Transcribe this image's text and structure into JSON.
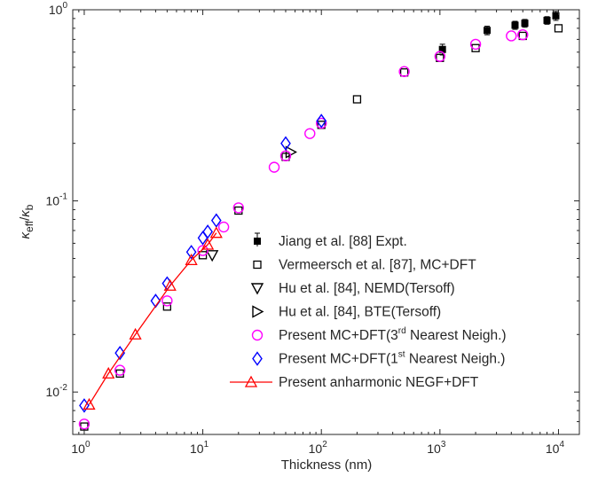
{
  "chart_data": {
    "type": "scatter",
    "title": "",
    "xlabel": "Thickness (nm)",
    "ylabel": {
      "base": "κ",
      "sub1": "eff",
      "slash": "/",
      "base2": "κ",
      "sub2": "b"
    },
    "xscale": "log",
    "yscale": "log",
    "xlim": [
      0.8,
      15000
    ],
    "ylim": [
      0.006,
      1.0
    ],
    "grid": false,
    "legend_position": "center-right",
    "x_ticks": [
      {
        "value": 1,
        "base": "10",
        "exp": "0"
      },
      {
        "value": 10,
        "base": "10",
        "exp": "1"
      },
      {
        "value": 100,
        "base": "10",
        "exp": "2"
      },
      {
        "value": 1000,
        "base": "10",
        "exp": "3"
      },
      {
        "value": 10000,
        "base": "10",
        "exp": "4"
      }
    ],
    "y_ticks": [
      {
        "value": 0.01,
        "base": "10",
        "exp": "-2"
      },
      {
        "value": 0.1,
        "base": "10",
        "exp": "-1"
      },
      {
        "value": 1,
        "base": "10",
        "exp": "0"
      }
    ],
    "series": [
      {
        "name": "Jiang et al. [88]  Expt.",
        "marker": "filled-square-errorbar",
        "color": "#000000",
        "points": [
          {
            "x": 1050,
            "y": 0.62,
            "err": 0.04
          },
          {
            "x": 2500,
            "y": 0.78,
            "err": 0.04
          },
          {
            "x": 4300,
            "y": 0.83,
            "err": 0.04
          },
          {
            "x": 5200,
            "y": 0.85,
            "err": 0.04
          },
          {
            "x": 8000,
            "y": 0.88,
            "err": 0.04
          },
          {
            "x": 9500,
            "y": 0.93,
            "err": 0.05
          }
        ]
      },
      {
        "name": "Vermeersch et al. [87], MC+DFT",
        "marker": "open-square",
        "color": "#000000",
        "points": [
          {
            "x": 1,
            "y": 0.0066
          },
          {
            "x": 2,
            "y": 0.0125
          },
          {
            "x": 5,
            "y": 0.028
          },
          {
            "x": 10,
            "y": 0.052
          },
          {
            "x": 20,
            "y": 0.089
          },
          {
            "x": 50,
            "y": 0.17
          },
          {
            "x": 100,
            "y": 0.25
          },
          {
            "x": 200,
            "y": 0.34
          },
          {
            "x": 500,
            "y": 0.47
          },
          {
            "x": 1000,
            "y": 0.56
          },
          {
            "x": 2000,
            "y": 0.63
          },
          {
            "x": 5000,
            "y": 0.73
          },
          {
            "x": 10000,
            "y": 0.8
          }
        ]
      },
      {
        "name": "Hu et al. [84],  NEMD(Tersoff)",
        "marker": "triangle-down",
        "color": "#000000",
        "points": [
          {
            "x": 12,
            "y": 0.052
          }
        ]
      },
      {
        "name": "Hu et al. [84],  BTE(Tersoff)",
        "marker": "triangle-right",
        "color": "#000000",
        "points": [
          {
            "x": 55,
            "y": 0.18
          }
        ]
      },
      {
        "name": "Present MC+DFT(3rd Nearest Neigh.)",
        "label_parts": {
          "pre": "Present MC+DFT(3",
          "sup": "rd",
          "post": " Nearest Neigh.)"
        },
        "marker": "circle",
        "color": "#ff00ff",
        "points": [
          {
            "x": 1,
            "y": 0.0068
          },
          {
            "x": 2,
            "y": 0.013
          },
          {
            "x": 5,
            "y": 0.03
          },
          {
            "x": 10,
            "y": 0.055
          },
          {
            "x": 15,
            "y": 0.073
          },
          {
            "x": 20,
            "y": 0.092
          },
          {
            "x": 40,
            "y": 0.15
          },
          {
            "x": 50,
            "y": 0.172
          },
          {
            "x": 80,
            "y": 0.225
          },
          {
            "x": 100,
            "y": 0.255
          },
          {
            "x": 500,
            "y": 0.475
          },
          {
            "x": 1000,
            "y": 0.57
          },
          {
            "x": 2000,
            "y": 0.66
          },
          {
            "x": 4000,
            "y": 0.73
          },
          {
            "x": 5000,
            "y": 0.74
          }
        ]
      },
      {
        "name": "Present MC+DFT(1st Nearest Neigh.)",
        "label_parts": {
          "pre": "Present MC+DFT(1",
          "sup": "st",
          "post": " Nearest Neigh.)"
        },
        "marker": "diamond",
        "color": "#0000ff",
        "points": [
          {
            "x": 1,
            "y": 0.0085
          },
          {
            "x": 2,
            "y": 0.016
          },
          {
            "x": 4,
            "y": 0.03
          },
          {
            "x": 5,
            "y": 0.037
          },
          {
            "x": 8,
            "y": 0.054
          },
          {
            "x": 10,
            "y": 0.064
          },
          {
            "x": 11,
            "y": 0.069
          },
          {
            "x": 13,
            "y": 0.079
          },
          {
            "x": 50,
            "y": 0.2
          },
          {
            "x": 100,
            "y": 0.262
          }
        ]
      },
      {
        "name": "Present anharmonic NEGF+DFT",
        "marker": "triangle-up-line",
        "color": "#ff0000",
        "points": [
          {
            "x": 1.1,
            "y": 0.0086
          },
          {
            "x": 1.6,
            "y": 0.0125
          },
          {
            "x": 2.7,
            "y": 0.02
          },
          {
            "x": 5.3,
            "y": 0.036
          },
          {
            "x": 8,
            "y": 0.049
          },
          {
            "x": 11,
            "y": 0.059
          },
          {
            "x": 13,
            "y": 0.068
          }
        ]
      }
    ]
  }
}
